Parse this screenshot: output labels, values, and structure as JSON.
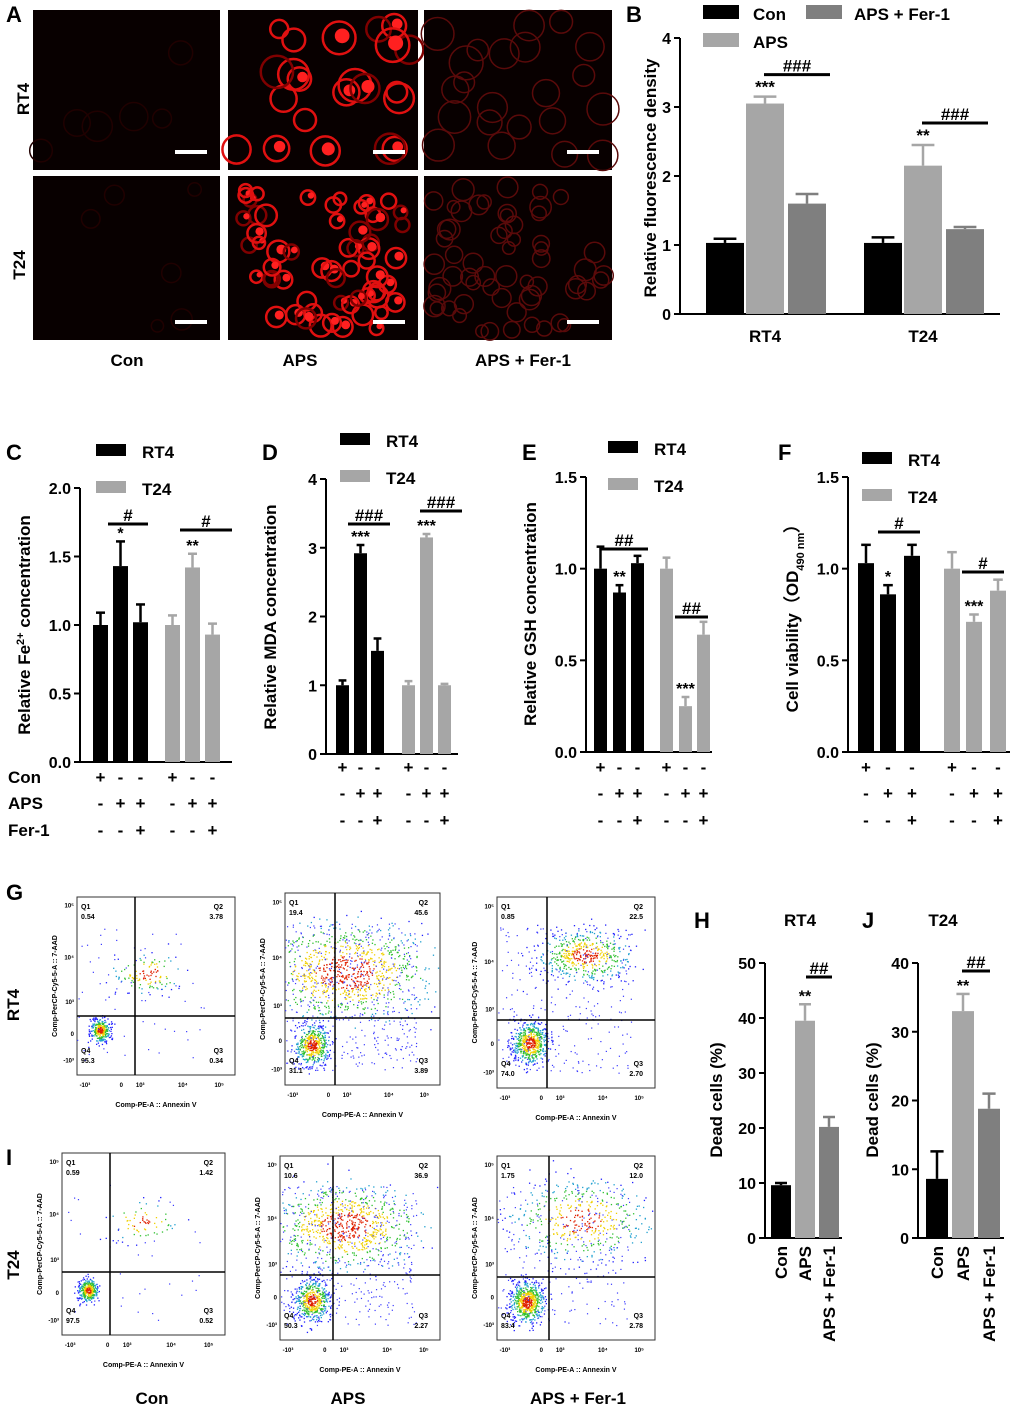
{
  "panel_letters": [
    "A",
    "B",
    "C",
    "D",
    "E",
    "F",
    "G",
    "H",
    "I",
    "J"
  ],
  "panel_a": {
    "rows": [
      "RT4",
      "T24"
    ],
    "columns": [
      "Con",
      "APS",
      "APS + Fer-1"
    ],
    "stain_color": "#ff1a1a"
  },
  "colors": {
    "black": "#000000",
    "light_gray": "#a6a6a6",
    "dark_gray": "#7f7f7f"
  },
  "chart_data": [
    {
      "id": "B",
      "type": "bar",
      "ylabel": "Relative fluorescence density",
      "categories": [
        "RT4",
        "T24"
      ],
      "ylim": [
        0,
        4
      ],
      "yticks": [
        "0",
        "1",
        "2",
        "3",
        "4"
      ],
      "legend": {
        "placement": "top",
        "entries": [
          "Con",
          "APS + Fer-1",
          "APS"
        ]
      },
      "series": [
        {
          "name": "Con",
          "color": "#000000",
          "values": [
            1.03,
            1.03
          ],
          "errors": [
            0.06,
            0.08
          ],
          "sig": [
            "",
            ""
          ]
        },
        {
          "name": "APS",
          "color": "#a6a6a6",
          "values": [
            3.05,
            2.15
          ],
          "errors": [
            0.1,
            0.3
          ],
          "sig": [
            "***",
            "**"
          ]
        },
        {
          "name": "APS + Fer-1",
          "color": "#7f7f7f",
          "values": [
            1.6,
            1.23
          ],
          "errors": [
            0.14,
            0.03
          ],
          "sig": [
            "",
            ""
          ]
        }
      ],
      "brackets": [
        "###",
        "###"
      ]
    },
    {
      "id": "C",
      "type": "bar",
      "ylabel": "Relative Fe",
      "ylabel_sup": "2+",
      "ylabel_rest": " concentration",
      "ylim": [
        0,
        2
      ],
      "yticks": [
        "0.0",
        "0.5",
        "1.0",
        "1.5",
        "2.0"
      ],
      "legend": {
        "entries": [
          "RT4",
          "T24"
        ]
      },
      "series": [
        {
          "name": "RT4",
          "color": "#000000",
          "values": [
            1.0,
            1.43,
            1.02
          ],
          "errors": [
            0.09,
            0.18,
            0.13
          ],
          "sig": [
            "",
            "*",
            ""
          ],
          "bracket": "#"
        },
        {
          "name": "T24",
          "color": "#a6a6a6",
          "values": [
            1.0,
            1.42,
            0.93
          ],
          "errors": [
            0.07,
            0.1,
            0.08
          ],
          "sig": [
            "",
            "**",
            ""
          ],
          "bracket": "#"
        }
      ],
      "treatments": [
        {
          "label": "Con",
          "marks": [
            "+",
            "-",
            "-",
            "+",
            "-",
            "-"
          ]
        },
        {
          "label": "APS",
          "marks": [
            "-",
            "+",
            "+",
            "-",
            "+",
            "+"
          ]
        },
        {
          "label": "Fer-1",
          "marks": [
            "-",
            "-",
            "+",
            "-",
            "-",
            "+"
          ]
        }
      ]
    },
    {
      "id": "D",
      "type": "bar",
      "ylabel": "Relative MDA concentration",
      "ylim": [
        0,
        4
      ],
      "yticks": [
        "0",
        "1",
        "2",
        "3",
        "4"
      ],
      "legend": {
        "entries": [
          "RT4",
          "T24"
        ]
      },
      "series": [
        {
          "name": "RT4",
          "color": "#000000",
          "values": [
            1.0,
            2.92,
            1.5
          ],
          "errors": [
            0.07,
            0.12,
            0.18
          ],
          "sig": [
            "",
            "***",
            ""
          ],
          "bracket": "###"
        },
        {
          "name": "T24",
          "color": "#a6a6a6",
          "values": [
            1.0,
            3.15,
            1.0
          ],
          "errors": [
            0.06,
            0.05,
            0.02
          ],
          "sig": [
            "",
            "***",
            ""
          ],
          "bracket": "###"
        }
      ],
      "treatments": [
        {
          "marks": [
            "+",
            "-",
            "-",
            "+",
            "-",
            "-"
          ]
        },
        {
          "marks": [
            "-",
            "+",
            "+",
            "-",
            "+",
            "+"
          ]
        },
        {
          "marks": [
            "-",
            "-",
            "+",
            "-",
            "-",
            "+"
          ]
        }
      ]
    },
    {
      "id": "E",
      "type": "bar",
      "ylabel": "Relative GSH concentration",
      "ylim": [
        0,
        1.5
      ],
      "yticks": [
        "0.0",
        "0.5",
        "1.0",
        "1.5"
      ],
      "legend": {
        "entries": [
          "RT4",
          "T24"
        ]
      },
      "series": [
        {
          "name": "RT4",
          "color": "#000000",
          "values": [
            1.0,
            0.87,
            1.03
          ],
          "errors": [
            0.12,
            0.04,
            0.04
          ],
          "sig": [
            "",
            "**",
            ""
          ],
          "bracket": "##"
        },
        {
          "name": "T24",
          "color": "#a6a6a6",
          "values": [
            1.0,
            0.25,
            0.64
          ],
          "errors": [
            0.06,
            0.05,
            0.07
          ],
          "sig": [
            "",
            "***",
            ""
          ],
          "bracket": "##"
        }
      ],
      "treatments": [
        {
          "marks": [
            "+",
            "-",
            "-",
            "+",
            "-",
            "-"
          ]
        },
        {
          "marks": [
            "-",
            "+",
            "+",
            "-",
            "+",
            "+"
          ]
        },
        {
          "marks": [
            "-",
            "-",
            "+",
            "-",
            "-",
            "+"
          ]
        }
      ]
    },
    {
      "id": "F",
      "type": "bar",
      "ylabel": "Cell viability（OD",
      "ylabel_sub": "490 nm",
      "ylabel_rest": "）",
      "ylim": [
        0,
        1.5
      ],
      "yticks": [
        "0.0",
        "0.5",
        "1.0",
        "1.5"
      ],
      "legend": {
        "entries": [
          "RT4",
          "T24"
        ]
      },
      "series": [
        {
          "name": "RT4",
          "color": "#000000",
          "values": [
            1.03,
            0.86,
            1.07
          ],
          "errors": [
            0.1,
            0.05,
            0.06
          ],
          "sig": [
            "",
            "*",
            ""
          ],
          "bracket": "#"
        },
        {
          "name": "T24",
          "color": "#a6a6a6",
          "values": [
            1.0,
            0.71,
            0.88
          ],
          "errors": [
            0.09,
            0.04,
            0.06
          ],
          "sig": [
            "",
            "***",
            ""
          ],
          "bracket": "#"
        }
      ],
      "treatments": [
        {
          "marks": [
            "+",
            "-",
            "-",
            "+",
            "-",
            "-"
          ]
        },
        {
          "marks": [
            "-",
            "+",
            "+",
            "-",
            "+",
            "+"
          ]
        },
        {
          "marks": [
            "-",
            "-",
            "+",
            "-",
            "-",
            "+"
          ]
        }
      ]
    },
    {
      "id": "H",
      "type": "bar",
      "title": "RT4",
      "ylabel": "Dead cells (%)",
      "ylim": [
        0,
        50
      ],
      "yticks": [
        "0",
        "10",
        "20",
        "30",
        "40",
        "50"
      ],
      "categories": [
        "Con",
        "APS",
        "APS + Fer-1"
      ],
      "values": [
        9.6,
        39.5,
        20.2
      ],
      "errors": [
        0.4,
        3.0,
        1.8
      ],
      "colors": [
        "#000000",
        "#a6a6a6",
        "#7f7f7f"
      ],
      "sig": [
        "",
        "**",
        ""
      ],
      "bracket": "##"
    },
    {
      "id": "J",
      "type": "bar",
      "title": "T24",
      "ylabel": "Dead cells (%)",
      "ylim": [
        0,
        40
      ],
      "yticks": [
        "0",
        "10",
        "20",
        "30",
        "40"
      ],
      "categories": [
        "Con",
        "APS",
        "APS + Fer-1"
      ],
      "values": [
        8.6,
        33.0,
        18.8
      ],
      "errors": [
        4.0,
        2.5,
        2.2
      ],
      "colors": [
        "#000000",
        "#a6a6a6",
        "#7f7f7f"
      ],
      "sig": [
        "",
        "**",
        ""
      ],
      "bracket": "##"
    }
  ],
  "flow": {
    "xlabel": "Comp-PE-A :: Annexin V",
    "ylabel": "Comp-PerCP-Cy5-5-A :: 7-AAD",
    "x_ticks": [
      "-10³",
      "0",
      "10³",
      "10⁴",
      "10⁵"
    ],
    "y_ticks": [
      "10⁵",
      "10⁴",
      "10³",
      "0",
      "-10³"
    ],
    "column_labels": [
      "Con",
      "APS",
      "APS + Fer-1"
    ],
    "row_labels": [
      "RT4",
      "T24"
    ],
    "plots": [
      {
        "row": "RT4",
        "group": "Con",
        "Q1": "0.54",
        "Q2": "3.78",
        "Q3": "0.34",
        "Q4": "95.3"
      },
      {
        "row": "RT4",
        "group": "APS",
        "Q1": "19.4",
        "Q2": "45.6",
        "Q3": "3.89",
        "Q4": "31.1"
      },
      {
        "row": "RT4",
        "group": "APS + Fer-1",
        "Q1": "0.85",
        "Q2": "22.5",
        "Q3": "2.70",
        "Q4": "74.0"
      },
      {
        "row": "T24",
        "group": "Con",
        "Q1": "0.59",
        "Q2": "1.42",
        "Q3": "0.52",
        "Q4": "97.5"
      },
      {
        "row": "T24",
        "group": "APS",
        "Q1": "10.6",
        "Q2": "36.9",
        "Q3": "2.27",
        "Q4": "50.3"
      },
      {
        "row": "T24",
        "group": "APS + Fer-1",
        "Q1": "1.75",
        "Q2": "12.0",
        "Q3": "2.78",
        "Q4": "83.4"
      }
    ]
  }
}
